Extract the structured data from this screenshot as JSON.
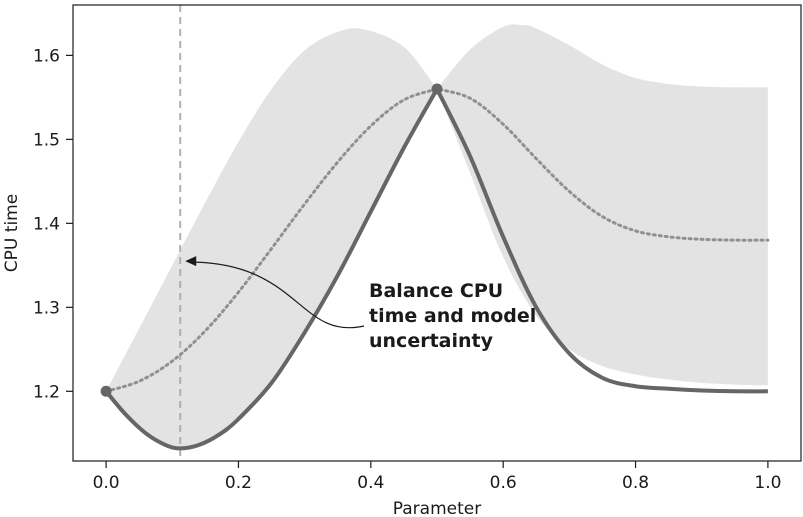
{
  "chart_data": {
    "type": "line",
    "xlabel": "Parameter",
    "ylabel": "CPU time",
    "xlim": [
      -0.05,
      1.05
    ],
    "ylim": [
      1.117,
      1.66
    ],
    "xticks": [
      0.0,
      0.2,
      0.4,
      0.6,
      0.8,
      1.0
    ],
    "xtick_labels": [
      "0.0",
      "0.2",
      "0.4",
      "0.6",
      "0.8",
      "1.0"
    ],
    "yticks": [
      1.2,
      1.3,
      1.4,
      1.5,
      1.6
    ],
    "ytick_labels": [
      "1.2",
      "1.3",
      "1.4",
      "1.5",
      "1.6"
    ],
    "grid": false,
    "colors": {
      "true_function": "#666666",
      "mean": "#909090",
      "uncertainty_band": "#e3e3e4",
      "vline": "#b0b0b0",
      "observations": "#666666"
    },
    "vline_x": 0.112,
    "annotation": {
      "lines": [
        "Balance CPU",
        "time and model",
        "uncertainty"
      ],
      "points_to": [
        0.112,
        1.355
      ]
    },
    "observations": [
      {
        "x": 0.0,
        "y": 1.2
      },
      {
        "x": 0.5,
        "y": 1.56
      }
    ],
    "true_function": {
      "x": [
        0.0,
        0.03,
        0.06,
        0.09,
        0.112,
        0.14,
        0.17,
        0.2,
        0.25,
        0.3,
        0.35,
        0.4,
        0.45,
        0.5,
        0.55,
        0.6,
        0.65,
        0.7,
        0.75,
        0.8,
        0.85,
        0.9,
        0.95,
        1.0
      ],
      "y": [
        1.2,
        1.172,
        1.15,
        1.136,
        1.132,
        1.136,
        1.148,
        1.167,
        1.21,
        1.27,
        1.338,
        1.414,
        1.49,
        1.56,
        1.48,
        1.384,
        1.3,
        1.245,
        1.216,
        1.206,
        1.203,
        1.201,
        1.2,
        1.2
      ]
    },
    "mean": {
      "x": [
        0.0,
        0.05,
        0.1,
        0.15,
        0.2,
        0.25,
        0.3,
        0.35,
        0.4,
        0.45,
        0.5,
        0.55,
        0.6,
        0.65,
        0.7,
        0.75,
        0.8,
        0.85,
        0.9,
        0.95,
        1.0
      ],
      "y": [
        1.2,
        1.212,
        1.236,
        1.272,
        1.318,
        1.37,
        1.423,
        1.473,
        1.516,
        1.547,
        1.56,
        1.549,
        1.518,
        1.477,
        1.438,
        1.408,
        1.391,
        1.384,
        1.381,
        1.38,
        1.38
      ]
    },
    "band_upper": {
      "x": [
        0.0,
        0.05,
        0.1,
        0.15,
        0.2,
        0.25,
        0.3,
        0.35,
        0.39,
        0.45,
        0.5,
        0.55,
        0.6,
        0.63,
        0.65,
        0.7,
        0.75,
        0.8,
        0.85,
        0.9,
        0.95,
        1.0
      ],
      "y": [
        1.2,
        1.275,
        1.35,
        1.425,
        1.497,
        1.56,
        1.606,
        1.628,
        1.631,
        1.61,
        1.56,
        1.607,
        1.634,
        1.636,
        1.632,
        1.612,
        1.589,
        1.573,
        1.566,
        1.563,
        1.562,
        1.562
      ]
    },
    "band_lower": {
      "x": [
        0.0,
        0.03,
        0.06,
        0.09,
        0.112,
        0.14,
        0.17,
        0.2,
        0.25,
        0.3,
        0.35,
        0.4,
        0.45,
        0.5,
        0.55,
        0.6,
        0.65,
        0.7,
        0.75,
        0.8,
        0.85,
        0.9,
        0.95,
        1.0
      ],
      "y": [
        1.2,
        1.172,
        1.15,
        1.136,
        1.132,
        1.136,
        1.148,
        1.167,
        1.21,
        1.27,
        1.338,
        1.414,
        1.49,
        1.56,
        1.46,
        1.36,
        1.29,
        1.25,
        1.23,
        1.22,
        1.214,
        1.21,
        1.208,
        1.207
      ]
    }
  }
}
